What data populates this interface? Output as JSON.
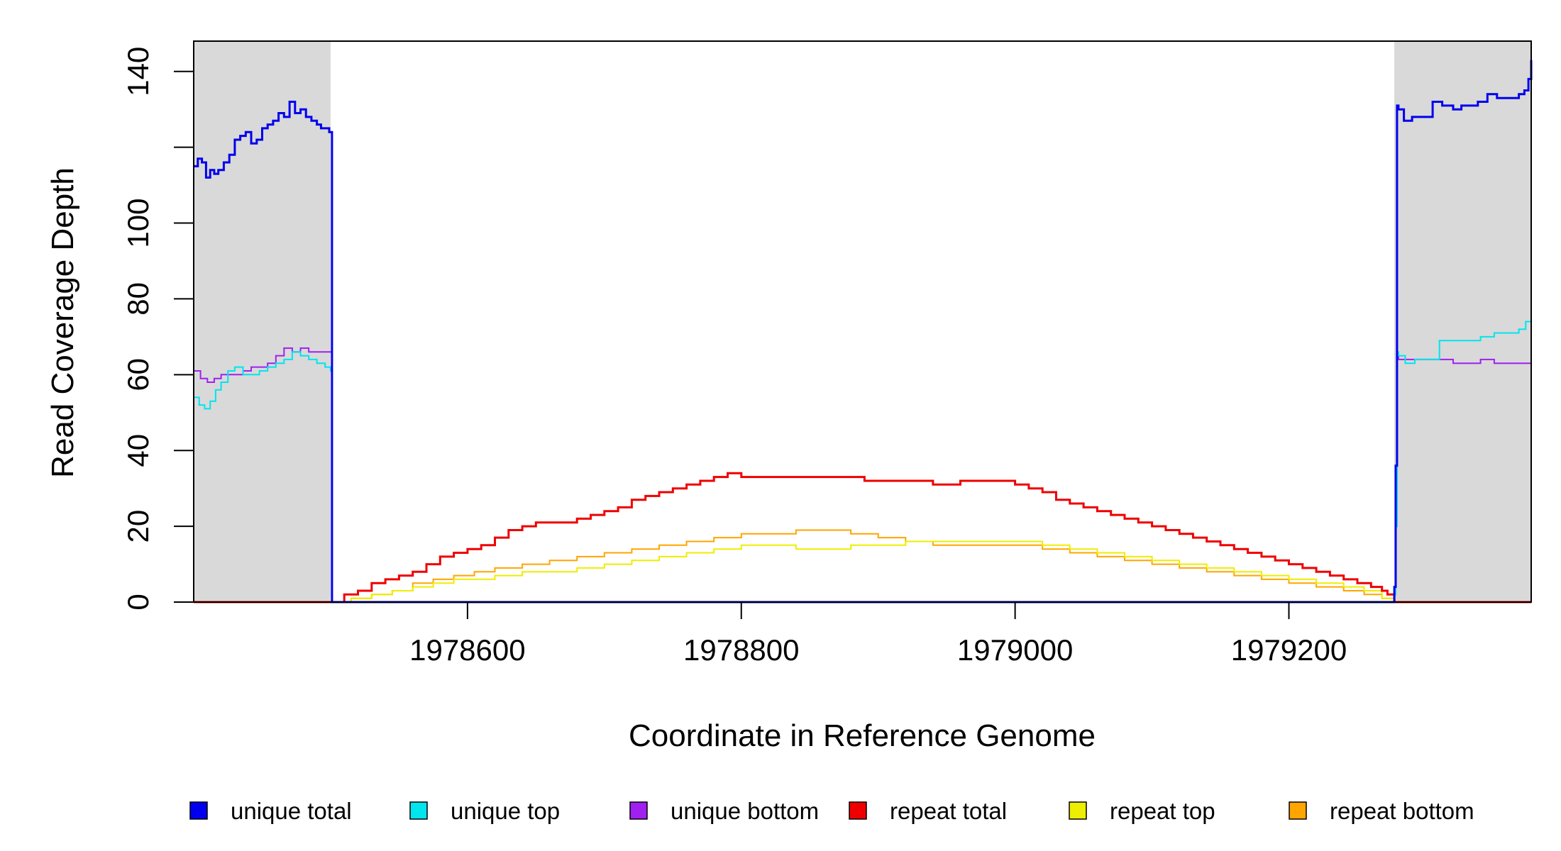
{
  "chart_data": {
    "type": "line",
    "xlabel": "Coordinate in Reference Genome",
    "ylabel": "Read Coverage Depth",
    "xlim": [
      1978400,
      1979377
    ],
    "ylim": [
      0,
      148
    ],
    "x_ticks": [
      1978600,
      1978800,
      1979000,
      1979200
    ],
    "x_tick_labels": [
      "1978600",
      "1978800",
      "1979000",
      "1979200"
    ],
    "y_ticks": [
      0,
      20,
      40,
      60,
      80,
      100,
      120,
      140
    ],
    "y_tick_labels": [
      "0",
      "20",
      "40",
      "60",
      "80",
      "100",
      "",
      "140"
    ],
    "shaded_regions": [
      [
        1978400,
        1978500
      ],
      [
        1979277,
        1979377
      ]
    ],
    "shade_color": "#d9d9d9",
    "grid": false,
    "legend_position": "bottom",
    "series": [
      {
        "name": "unique total",
        "color": "#0000ee",
        "width": 3,
        "x": [
          1978400,
          1978403,
          1978406,
          1978409,
          1978412,
          1978415,
          1978418,
          1978422,
          1978426,
          1978430,
          1978434,
          1978438,
          1978442,
          1978446,
          1978450,
          1978454,
          1978458,
          1978462,
          1978466,
          1978470,
          1978474,
          1978478,
          1978482,
          1978486,
          1978490,
          1978493,
          1978496,
          1978499,
          1978500,
          1978501,
          1979276,
          1979277,
          1979278,
          1979279,
          1979280,
          1979284,
          1979290,
          1979298,
          1979305,
          1979312,
          1979320,
          1979326,
          1979333,
          1979338,
          1979345,
          1979352,
          1979360,
          1979368,
          1979372,
          1979375,
          1979377
        ],
        "y": [
          115,
          117,
          116,
          112,
          114,
          113,
          114,
          116,
          118,
          122,
          123,
          124,
          121,
          122,
          125,
          126,
          127,
          129,
          128,
          132,
          129,
          130,
          128,
          127,
          126,
          125,
          125,
          124,
          124,
          0,
          0,
          4,
          36,
          131,
          130,
          127,
          128,
          128,
          132,
          131,
          130,
          131,
          131,
          132,
          134,
          133,
          133,
          134,
          135,
          138,
          143
        ]
      },
      {
        "name": "unique top",
        "color": "#00e5ee",
        "width": 2,
        "x": [
          1978400,
          1978404,
          1978408,
          1978412,
          1978416,
          1978420,
          1978425,
          1978430,
          1978436,
          1978442,
          1978448,
          1978454,
          1978460,
          1978466,
          1978472,
          1978478,
          1978484,
          1978490,
          1978496,
          1978500,
          1978501,
          1979276,
          1979277,
          1979278,
          1979279,
          1979280,
          1979285,
          1979292,
          1979300,
          1979310,
          1979320,
          1979330,
          1979340,
          1979350,
          1979360,
          1979368,
          1979373,
          1979377
        ],
        "y": [
          54,
          52,
          51,
          53,
          56,
          58,
          61,
          62,
          60,
          60,
          61,
          62,
          63,
          64,
          66,
          65,
          64,
          63,
          62,
          61,
          0,
          0,
          2,
          20,
          66,
          65,
          63,
          64,
          64,
          69,
          69,
          69,
          70,
          71,
          71,
          72,
          74,
          78
        ]
      },
      {
        "name": "unique bottom",
        "color": "#a020f0",
        "width": 2,
        "x": [
          1978400,
          1978405,
          1978410,
          1978415,
          1978420,
          1978425,
          1978430,
          1978436,
          1978442,
          1978448,
          1978454,
          1978460,
          1978466,
          1978472,
          1978478,
          1978484,
          1978490,
          1978496,
          1978500,
          1978501,
          1979276,
          1979277,
          1979278,
          1979279,
          1979280,
          1979290,
          1979300,
          1979310,
          1979320,
          1979330,
          1979340,
          1979350,
          1979360,
          1979370,
          1979374,
          1979377
        ],
        "y": [
          61,
          59,
          58,
          59,
          60,
          60,
          60,
          61,
          62,
          62,
          63,
          65,
          67,
          66,
          67,
          66,
          66,
          66,
          66,
          0,
          0,
          2,
          20,
          65,
          64,
          64,
          64,
          64,
          63,
          63,
          64,
          63,
          63,
          63,
          63,
          64
        ]
      },
      {
        "name": "repeat total",
        "color": "#ee0000",
        "width": 3,
        "x": [
          1978400,
          1978500,
          1978510,
          1978520,
          1978530,
          1978540,
          1978550,
          1978560,
          1978570,
          1978580,
          1978590,
          1978600,
          1978610,
          1978620,
          1978630,
          1978640,
          1978650,
          1978660,
          1978670,
          1978680,
          1978690,
          1978700,
          1978710,
          1978720,
          1978730,
          1978740,
          1978750,
          1978760,
          1978770,
          1978780,
          1978790,
          1978800,
          1978810,
          1978820,
          1978830,
          1978840,
          1978850,
          1978860,
          1978870,
          1978880,
          1978890,
          1978900,
          1978910,
          1978920,
          1978930,
          1978940,
          1978950,
          1978960,
          1978970,
          1978980,
          1978990,
          1979000,
          1979010,
          1979020,
          1979030,
          1979040,
          1979050,
          1979060,
          1979070,
          1979080,
          1979090,
          1979100,
          1979110,
          1979120,
          1979130,
          1979140,
          1979150,
          1979160,
          1979170,
          1979180,
          1979190,
          1979200,
          1979210,
          1979220,
          1979230,
          1979240,
          1979250,
          1979260,
          1979268,
          1979272,
          1979277,
          1979377
        ],
        "y": [
          0,
          0,
          2,
          3,
          5,
          6,
          7,
          8,
          10,
          12,
          13,
          14,
          15,
          17,
          19,
          20,
          21,
          21,
          21,
          22,
          23,
          24,
          25,
          27,
          28,
          29,
          30,
          31,
          32,
          33,
          34,
          33,
          33,
          33,
          33,
          33,
          33,
          33,
          33,
          33,
          32,
          32,
          32,
          32,
          32,
          31,
          31,
          32,
          32,
          32,
          32,
          31,
          30,
          29,
          27,
          26,
          25,
          24,
          23,
          22,
          21,
          20,
          19,
          18,
          17,
          16,
          15,
          14,
          13,
          12,
          11,
          10,
          9,
          8,
          7,
          6,
          5,
          4,
          3,
          2,
          0,
          0
        ]
      },
      {
        "name": "repeat top",
        "color": "#eeee00",
        "width": 2,
        "x": [
          1978400,
          1978500,
          1978515,
          1978530,
          1978545,
          1978560,
          1978575,
          1978590,
          1978605,
          1978620,
          1978640,
          1978660,
          1978680,
          1978700,
          1978720,
          1978740,
          1978760,
          1978780,
          1978800,
          1978820,
          1978840,
          1978860,
          1978880,
          1978900,
          1978920,
          1978940,
          1978960,
          1978980,
          1979000,
          1979020,
          1979040,
          1979060,
          1979080,
          1979100,
          1979120,
          1979140,
          1979160,
          1979180,
          1979200,
          1979220,
          1979240,
          1979255,
          1979268,
          1979277,
          1979377
        ],
        "y": [
          0,
          0,
          1,
          2,
          3,
          4,
          5,
          6,
          6,
          7,
          8,
          8,
          9,
          10,
          11,
          12,
          13,
          14,
          15,
          15,
          14,
          14,
          15,
          15,
          16,
          16,
          16,
          16,
          16,
          15,
          14,
          13,
          12,
          11,
          10,
          9,
          8,
          7,
          6,
          5,
          4,
          3,
          1,
          0,
          0
        ]
      },
      {
        "name": "repeat bottom",
        "color": "#ffa500",
        "width": 2,
        "x": [
          1978400,
          1978500,
          1978515,
          1978530,
          1978545,
          1978560,
          1978575,
          1978590,
          1978605,
          1978620,
          1978640,
          1978660,
          1978680,
          1978700,
          1978720,
          1978740,
          1978760,
          1978780,
          1978800,
          1978820,
          1978840,
          1978860,
          1978880,
          1978900,
          1978920,
          1978940,
          1978960,
          1978980,
          1979000,
          1979020,
          1979040,
          1979060,
          1979080,
          1979100,
          1979120,
          1979140,
          1979160,
          1979180,
          1979200,
          1979220,
          1979240,
          1979255,
          1979268,
          1979277,
          1979377
        ],
        "y": [
          0,
          0,
          1,
          2,
          3,
          5,
          6,
          7,
          8,
          9,
          10,
          11,
          12,
          13,
          14,
          15,
          16,
          17,
          18,
          18,
          19,
          19,
          18,
          17,
          16,
          15,
          15,
          15,
          15,
          14,
          13,
          12,
          11,
          10,
          9,
          8,
          7,
          6,
          5,
          4,
          3,
          2,
          1,
          0,
          0
        ]
      }
    ]
  }
}
